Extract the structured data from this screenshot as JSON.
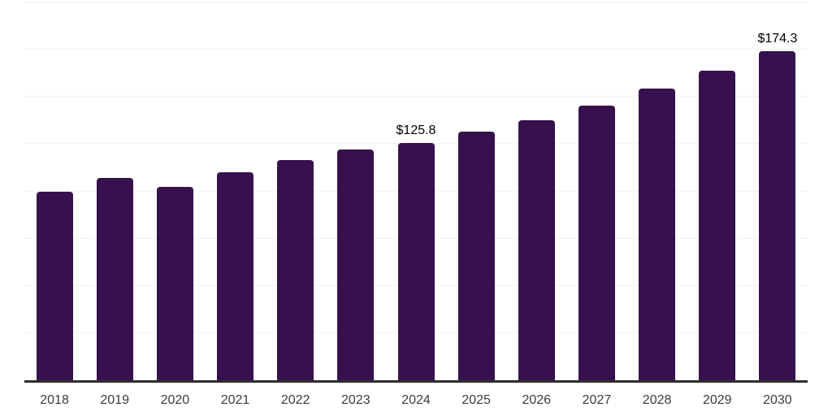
{
  "chart_data": {
    "type": "bar",
    "title": "",
    "xlabel": "",
    "ylabel": "",
    "categories": [
      "2018",
      "2019",
      "2020",
      "2021",
      "2022",
      "2023",
      "2024",
      "2025",
      "2026",
      "2027",
      "2028",
      "2029",
      "2030"
    ],
    "values": [
      99.9,
      107.3,
      102.4,
      110.0,
      116.5,
      122.3,
      125.8,
      131.8,
      137.8,
      145.3,
      154.4,
      163.7,
      174.3
    ],
    "labeled_points": [
      {
        "category": "2024",
        "label": "$125.8"
      },
      {
        "category": "2030",
        "label": "$174.3"
      }
    ],
    "ylim": [
      0,
      200
    ],
    "gridline_step": 25,
    "grid": "horizontal",
    "legend_position": "none",
    "y_axis_labels_visible": false,
    "bar_color": "#37114E",
    "axis_line_color": "#2E2E2E",
    "gridline_color": "#F2F2F2",
    "tick_label_color": "#3C3C3C",
    "data_label_color": "#000000",
    "background_color": "#FFFFFF"
  }
}
